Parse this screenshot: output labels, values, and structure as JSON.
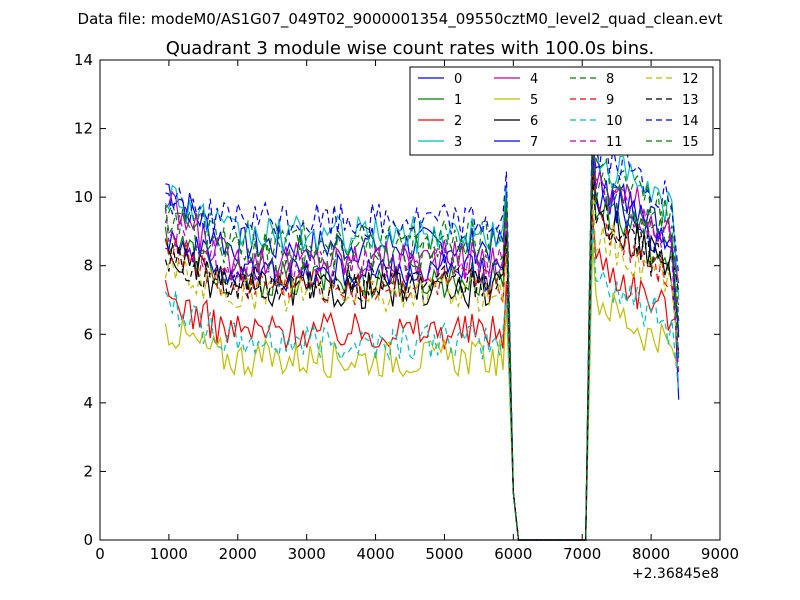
{
  "suptitle": "Data file: modeM0/AS1G07_049T02_9000001354_09550cztM0_level2_quad_clean.evt",
  "chart_data": {
    "type": "line",
    "title": "Quadrant 3 module wise count rates with 100.0s bins.",
    "xlabel": "",
    "ylabel": "",
    "x_offset_label": "+2.36845e8",
    "xlim": [
      0,
      9000
    ],
    "ylim": [
      0,
      14
    ],
    "xticks": [
      0,
      1000,
      2000,
      3000,
      4000,
      5000,
      6000,
      7000,
      8000,
      9000
    ],
    "yticks": [
      0,
      2,
      4,
      6,
      8,
      10,
      12,
      14
    ],
    "grid": false,
    "legend_position": "top-right",
    "legend_columns": 4,
    "gap": {
      "start": 6000,
      "end": 7050
    },
    "series": [
      {
        "name": "0",
        "color": "#0000ff",
        "dash": "solid",
        "pre": 8.6,
        "post": 10.5,
        "start": 10.4
      },
      {
        "name": "1",
        "color": "#008000",
        "dash": "solid",
        "pre": 7.6,
        "post": 9.8,
        "start": 8.9
      },
      {
        "name": "2",
        "color": "#ff0000",
        "dash": "solid",
        "pre": 6.1,
        "post": 8.2,
        "start": 7.1
      },
      {
        "name": "3",
        "color": "#00bfbf",
        "dash": "solid",
        "pre": 8.9,
        "post": 11.2,
        "start": 10.2
      },
      {
        "name": "4",
        "color": "#bf00bf",
        "dash": "solid",
        "pre": 8.2,
        "post": 10.6,
        "start": 9.8
      },
      {
        "name": "5",
        "color": "#bfbf00",
        "dash": "solid",
        "pre": 5.3,
        "post": 7.1,
        "start": 6.2
      },
      {
        "name": "6",
        "color": "#000000",
        "dash": "solid",
        "pre": 7.3,
        "post": 9.6,
        "start": 8.4
      },
      {
        "name": "7",
        "color": "#0000ff",
        "dash": "solid",
        "pre": 7.8,
        "post": 10.2,
        "start": 9.0
      },
      {
        "name": "8",
        "color": "#008000",
        "dash": "dashed",
        "pre": 8.8,
        "post": 11.0,
        "start": 9.5
      },
      {
        "name": "9",
        "color": "#ff0000",
        "dash": "dashed",
        "pre": 7.4,
        "post": 9.3,
        "start": 8.8
      },
      {
        "name": "10",
        "color": "#00bfbf",
        "dash": "dashed",
        "pre": 5.8,
        "post": 7.8,
        "start": 7.0
      },
      {
        "name": "11",
        "color": "#bf00bf",
        "dash": "dashed",
        "pre": 8.0,
        "post": 10.3,
        "start": 9.2
      },
      {
        "name": "12",
        "color": "#bfbf00",
        "dash": "dashed",
        "pre": 7.2,
        "post": 9.0,
        "start": 8.0
      },
      {
        "name": "13",
        "color": "#000000",
        "dash": "dashed",
        "pre": 7.5,
        "post": 9.4,
        "start": 8.3
      },
      {
        "name": "14",
        "color": "#0000ff",
        "dash": "dashed",
        "pre": 9.3,
        "post": 11.4,
        "start": 10.0
      },
      {
        "name": "15",
        "color": "#008000",
        "dash": "dashed",
        "pre": 8.4,
        "post": 10.4,
        "start": 9.4
      }
    ]
  }
}
